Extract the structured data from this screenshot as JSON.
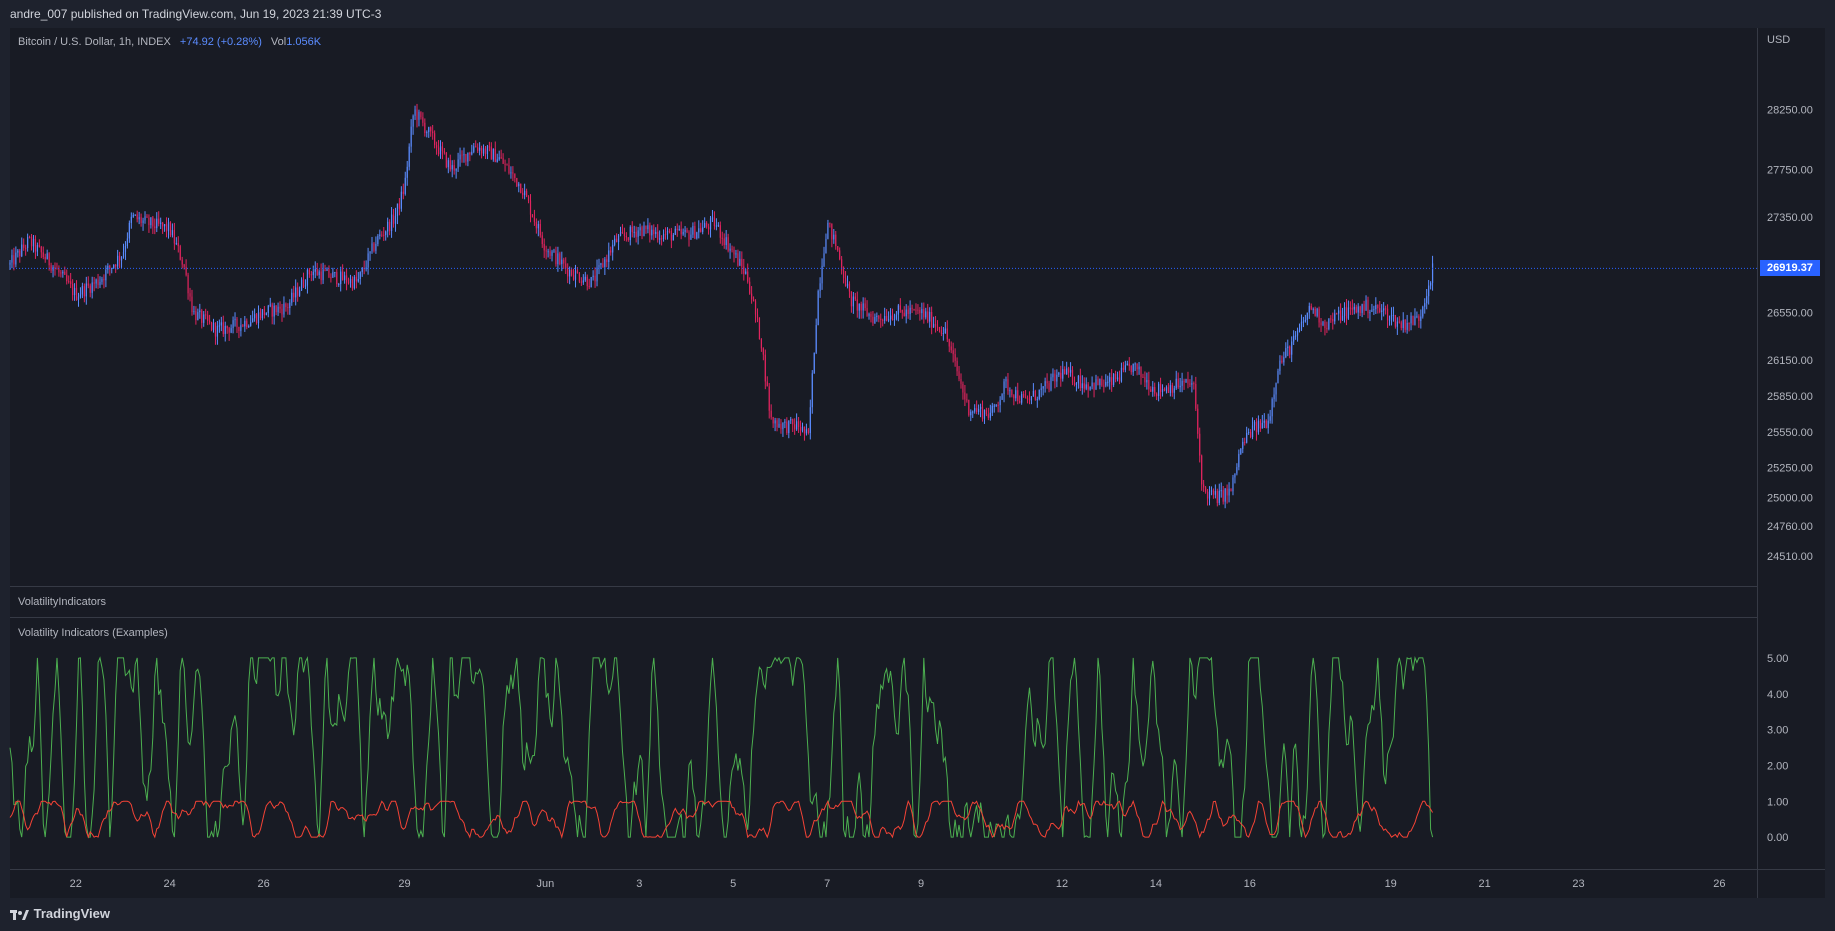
{
  "header": {
    "publish_text": "andre_007 published on TradingView.com, Jun 19, 2023 21:39 UTC-3"
  },
  "legend": {
    "symbol": "Bitcoin / U.S. Dollar, 1h, INDEX",
    "change": "+74.92 (+0.28%)",
    "vol_label": "Vol",
    "vol_value": "1.056K"
  },
  "currency": "USD",
  "footer": {
    "brand": "TradingView",
    "logo_icon": "tradingview-logo-icon"
  },
  "colors": {
    "up": "#5b8cff",
    "down": "#e0245e",
    "green": "#4caf50",
    "red": "#f44336",
    "price_line": "#2962ff"
  },
  "chart_data": [
    {
      "type": "candlestick",
      "title": "Bitcoin / U.S. Dollar, 1h, INDEX",
      "last_price": "26919.37",
      "ylim": [
        24350,
        28750
      ],
      "y_ticks": [
        "28250.00",
        "27750.00",
        "27350.00",
        "26550.00",
        "26150.00",
        "25850.00",
        "25550.00",
        "25250.00",
        "25000.00",
        "24760.00",
        "24510.00"
      ],
      "y_tick_values": [
        28250,
        27750,
        27350,
        26550,
        26150,
        25850,
        25550,
        25250,
        25000,
        24760,
        24510
      ],
      "x_ticks": [
        "22",
        "24",
        "26",
        "29",
        "Jun",
        "3",
        "5",
        "7",
        "9",
        "12",
        "14",
        "16",
        "19",
        "21",
        "23",
        "26"
      ],
      "x_tick_days": [
        22,
        24,
        26,
        29,
        32,
        34,
        36,
        38,
        40,
        43,
        45,
        47,
        50,
        52,
        54,
        57
      ],
      "x_range_days": [
        20.6,
        57.8
      ],
      "last_bar_day": 50.9,
      "trend": [
        [
          20.6,
          26950
        ],
        [
          21.0,
          27150
        ],
        [
          21.5,
          26950
        ],
        [
          22.0,
          26700
        ],
        [
          22.5,
          26820
        ],
        [
          23.0,
          27050
        ],
        [
          23.2,
          27350
        ],
        [
          23.5,
          27300
        ],
        [
          24.0,
          27250
        ],
        [
          24.3,
          26950
        ],
        [
          24.5,
          26550
        ],
        [
          25.0,
          26400
        ],
        [
          25.5,
          26450
        ],
        [
          26.0,
          26550
        ],
        [
          26.5,
          26600
        ],
        [
          27.0,
          26900
        ],
        [
          27.5,
          26850
        ],
        [
          28.0,
          26800
        ],
        [
          28.4,
          27150
        ],
        [
          28.8,
          27350
        ],
        [
          29.0,
          27600
        ],
        [
          29.2,
          28250
        ],
        [
          29.6,
          28000
        ],
        [
          30.0,
          27750
        ],
        [
          30.5,
          27950
        ],
        [
          31.0,
          27850
        ],
        [
          31.5,
          27600
        ],
        [
          32.0,
          27100
        ],
        [
          32.5,
          26900
        ],
        [
          33.0,
          26800
        ],
        [
          33.5,
          27150
        ],
        [
          34.0,
          27250
        ],
        [
          34.5,
          27200
        ],
        [
          35.0,
          27200
        ],
        [
          35.6,
          27300
        ],
        [
          36.0,
          27050
        ],
        [
          36.3,
          26850
        ],
        [
          36.6,
          26300
        ],
        [
          36.8,
          25650
        ],
        [
          37.1,
          25600
        ],
        [
          37.4,
          25600
        ],
        [
          37.6,
          25500
        ],
        [
          37.8,
          26700
        ],
        [
          38.0,
          27300
        ],
        [
          38.2,
          27100
        ],
        [
          38.5,
          26650
        ],
        [
          39.0,
          26500
        ],
        [
          39.5,
          26550
        ],
        [
          40.0,
          26550
        ],
        [
          40.5,
          26400
        ],
        [
          41.0,
          25750
        ],
        [
          41.5,
          25700
        ],
        [
          41.8,
          25950
        ],
        [
          42.2,
          25800
        ],
        [
          42.6,
          25900
        ],
        [
          43.0,
          26050
        ],
        [
          43.5,
          25950
        ],
        [
          44.0,
          25950
        ],
        [
          44.5,
          26100
        ],
        [
          45.0,
          25900
        ],
        [
          45.5,
          25950
        ],
        [
          45.8,
          25950
        ],
        [
          46.0,
          25050
        ],
        [
          46.3,
          25000
        ],
        [
          46.6,
          25050
        ],
        [
          46.8,
          25400
        ],
        [
          47.0,
          25550
        ],
        [
          47.4,
          25650
        ],
        [
          47.6,
          26100
        ],
        [
          48.0,
          26350
        ],
        [
          48.3,
          26600
        ],
        [
          48.6,
          26450
        ],
        [
          49.0,
          26550
        ],
        [
          49.5,
          26600
        ],
        [
          49.9,
          26550
        ],
        [
          50.2,
          26450
        ],
        [
          50.6,
          26500
        ],
        [
          50.9,
          26919
        ]
      ]
    },
    {
      "type": "line",
      "title": "Volatility Indicators (Examples)",
      "pane_label": "VolatilityIndicators",
      "ylim": [
        -0.5,
        5.5
      ],
      "y_ticks": [
        "5.00",
        "4.00",
        "3.00",
        "2.00",
        "1.00",
        "0.00"
      ],
      "y_tick_values": [
        5,
        4,
        3,
        2,
        1,
        0
      ],
      "series": [
        {
          "color": "#4caf50",
          "range": [
            0,
            5
          ],
          "pattern": "oscillating between 0 and 5"
        },
        {
          "color": "#f44336",
          "range": [
            0,
            1
          ],
          "pattern": "oscillating between 0 and 1"
        }
      ]
    }
  ]
}
